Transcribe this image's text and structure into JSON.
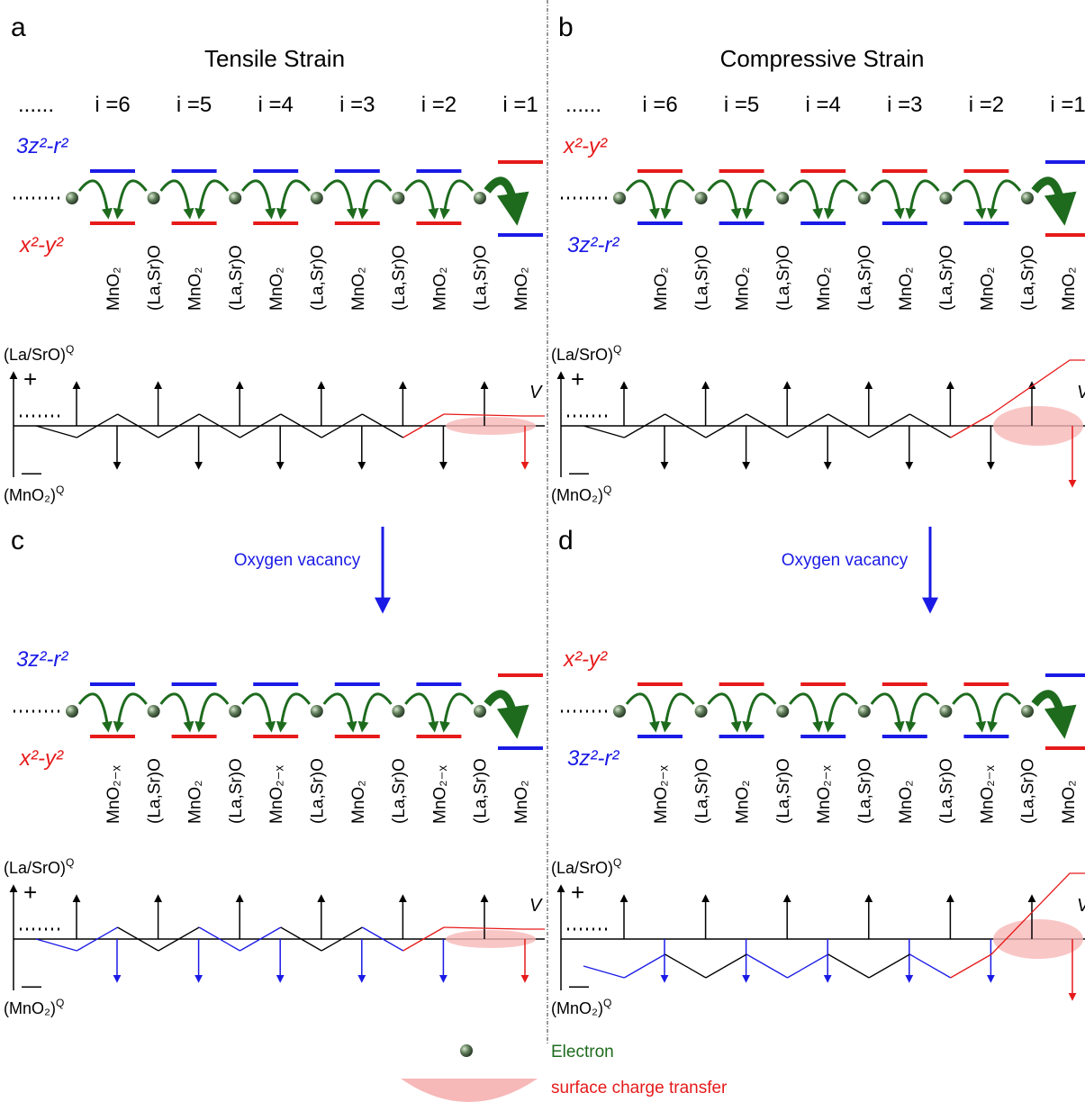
{
  "panels": [
    {
      "label": "a",
      "title": "Tensile Strain",
      "layers": [
        "......",
        "i =6",
        "i =5",
        "i =4",
        "i =3",
        "i =2",
        "i =1"
      ],
      "upper_orbital": "3z²-r²",
      "upper_color": "#1a1ae6",
      "lower_orbital": "x²-y²",
      "lower_color": "#e61a1a",
      "sites": [
        "MnO₂",
        "(La,Sr)O",
        "MnO₂",
        "(La,Sr)O",
        "MnO₂",
        "(La,Sr)O",
        "MnO₂",
        "(La,Sr)O",
        "MnO₂",
        "(La,Sr)O",
        "MnO₂"
      ],
      "positive_axis": {
        "text": "(La/SrO)",
        "superscript": "Q"
      },
      "plus": "+",
      "minus": "—",
      "negative_axis": {
        "text": "(MnO₂)",
        "superscript": "Q"
      },
      "potential": "V"
    },
    {
      "label": "b",
      "title": "Compressive Strain",
      "layers": [
        "......",
        "i =6",
        "i =5",
        "i =4",
        "i =3",
        "i =2",
        "i =1"
      ],
      "upper_orbital": "x²-y²",
      "upper_color": "#e61a1a",
      "lower_orbital": "3z²-r²",
      "lower_color": "#1a1ae6",
      "sites": [
        "MnO₂",
        "(La,Sr)O",
        "MnO₂",
        "(La,Sr)O",
        "MnO₂",
        "(La,Sr)O",
        "MnO₂",
        "(La,Sr)O",
        "MnO₂",
        "(La,Sr)O",
        "MnO₂"
      ],
      "positive_axis": {
        "text": "(La/SrO)",
        "superscript": "Q"
      },
      "plus": "+",
      "minus": "—",
      "negative_axis": {
        "text": "(MnO₂)",
        "superscript": "Q"
      },
      "potential": "V"
    },
    {
      "label": "c",
      "transition": "Oxygen vacancy",
      "upper_orbital": "3z²-r²",
      "upper_color": "#1a1ae6",
      "lower_orbital": "x²-y²",
      "lower_color": "#e61a1a",
      "sites": [
        "MnO₂₋ₓ",
        "(La,Sr)O",
        "MnO₂",
        "(La,Sr)O",
        "MnO₂₋ₓ",
        "(La,Sr)O",
        "MnO₂",
        "(La,Sr)O",
        "MnO₂₋ₓ",
        "(La,Sr)O",
        "MnO₂"
      ],
      "positive_axis": {
        "text": "(La/SrO)",
        "superscript": "Q"
      },
      "plus": "+",
      "minus": "—",
      "negative_axis": {
        "text": "(MnO₂)",
        "superscript": "Q"
      },
      "potential": "V"
    },
    {
      "label": "d",
      "transition": "Oxygen vacancy",
      "upper_orbital": "x²-y²",
      "upper_color": "#e61a1a",
      "lower_orbital": "3z²-r²",
      "lower_color": "#1a1ae6",
      "sites": [
        "MnO₂₋ₓ",
        "(La,Sr)O",
        "MnO₂",
        "(La,Sr)O",
        "MnO₂₋ₓ",
        "(La,Sr)O",
        "MnO₂",
        "(La,Sr)O",
        "MnO₂₋ₓ",
        "(La,Sr)O",
        "MnO₂"
      ],
      "positive_axis": {
        "text": "(La/SrO)",
        "superscript": "Q"
      },
      "plus": "+",
      "minus": "—",
      "negative_axis": {
        "text": "(MnO₂)",
        "superscript": "Q"
      },
      "potential": "V"
    }
  ],
  "legend": {
    "electron": "Electron",
    "surface": "surface charge transfer"
  }
}
